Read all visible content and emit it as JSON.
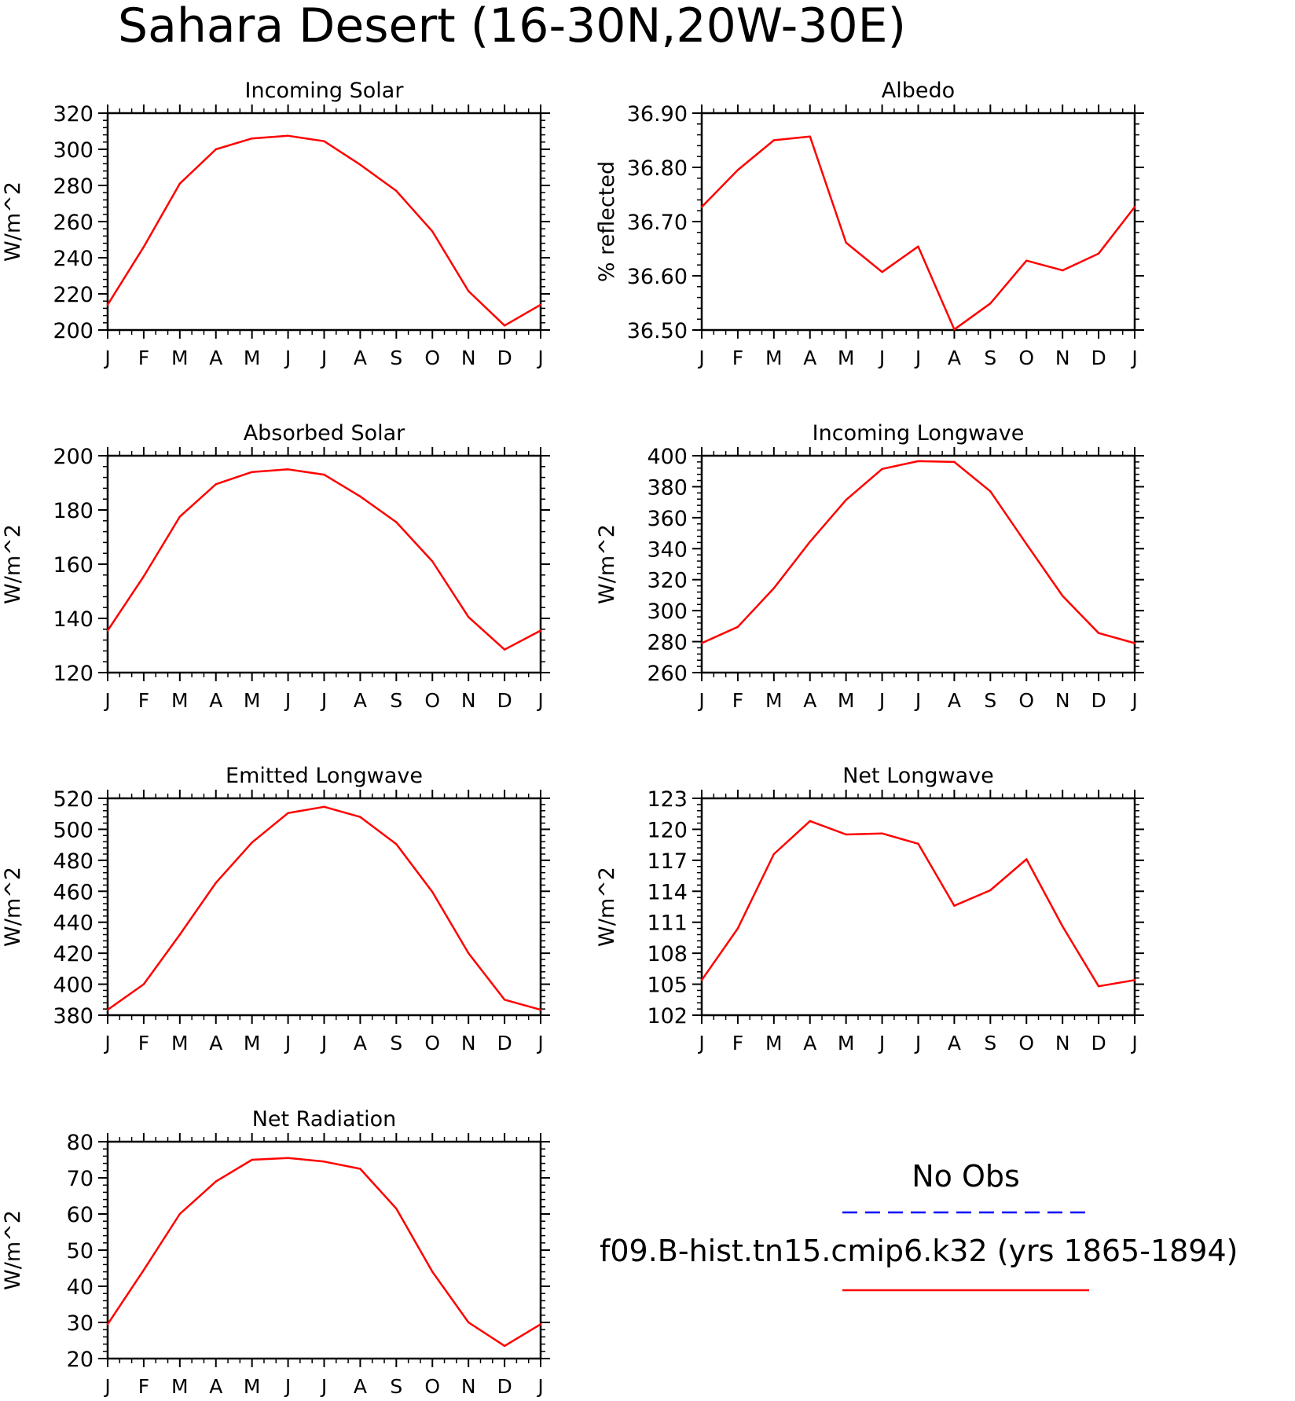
{
  "figure": {
    "title": "Sahara Desert (16-30N,20W-30E)"
  },
  "legend": {
    "items": [
      {
        "label": "No Obs",
        "color": "#0000ff",
        "dashed": true
      },
      {
        "label": "f09.B-hist.tn15.cmip6.k32 (yrs 1865-1894)",
        "color": "#ff0000",
        "dashed": false
      }
    ]
  },
  "chart_data": [
    {
      "type": "line",
      "title": "Incoming Solar",
      "ylabel": "W/m^2",
      "categories": [
        "J",
        "F",
        "M",
        "A",
        "M",
        "J",
        "J",
        "A",
        "S",
        "O",
        "N",
        "D",
        "J"
      ],
      "ylim": [
        200,
        320
      ],
      "yticks": [
        "200",
        "220",
        "240",
        "260",
        "280",
        "300",
        "320"
      ],
      "series": [
        {
          "color": "#ff0000",
          "values": [
            214,
            246,
            281,
            300,
            306,
            307.5,
            304.5,
            291.5,
            277,
            254.5,
            221.5,
            202.5,
            214
          ]
        }
      ]
    },
    {
      "type": "line",
      "title": "Albedo",
      "ylabel": "% reflected",
      "categories": [
        "J",
        "F",
        "M",
        "A",
        "M",
        "J",
        "J",
        "A",
        "S",
        "O",
        "N",
        "D",
        "J"
      ],
      "ylim": [
        36.5,
        36.9
      ],
      "yticks": [
        "36.50",
        "36.60",
        "36.70",
        "36.80",
        "36.90"
      ],
      "series": [
        {
          "color": "#ff0000",
          "values": [
            36.727,
            36.795,
            36.85,
            36.857,
            36.661,
            36.607,
            36.654,
            36.501,
            36.549,
            36.628,
            36.61,
            36.641,
            36.727
          ]
        }
      ]
    },
    {
      "type": "line",
      "title": "Absorbed Solar",
      "ylabel": "W/m^2",
      "categories": [
        "J",
        "F",
        "M",
        "A",
        "M",
        "J",
        "J",
        "A",
        "S",
        "O",
        "N",
        "D",
        "J"
      ],
      "ylim": [
        120,
        200
      ],
      "yticks": [
        "120",
        "140",
        "160",
        "180",
        "200"
      ],
      "series": [
        {
          "color": "#ff0000",
          "values": [
            135.5,
            155.5,
            177.5,
            189.5,
            194,
            195,
            193,
            185,
            175.5,
            161,
            140.5,
            128.5,
            135.5
          ]
        }
      ]
    },
    {
      "type": "line",
      "title": "Incoming Longwave",
      "ylabel": "W/m^2",
      "categories": [
        "J",
        "F",
        "M",
        "A",
        "M",
        "J",
        "J",
        "A",
        "S",
        "O",
        "N",
        "D",
        "J"
      ],
      "ylim": [
        260,
        400
      ],
      "yticks": [
        "260",
        "280",
        "300",
        "320",
        "340",
        "360",
        "380",
        "400"
      ],
      "series": [
        {
          "color": "#ff0000",
          "values": [
            279,
            289.5,
            314.5,
            344.5,
            371.5,
            391.5,
            396.5,
            396,
            377,
            343,
            309.5,
            285.5,
            279
          ]
        }
      ]
    },
    {
      "type": "line",
      "title": "Emitted Longwave",
      "ylabel": "W/m^2",
      "categories": [
        "J",
        "F",
        "M",
        "A",
        "M",
        "J",
        "J",
        "A",
        "S",
        "O",
        "N",
        "D",
        "J"
      ],
      "ylim": [
        380,
        520
      ],
      "yticks": [
        "380",
        "400",
        "420",
        "440",
        "460",
        "480",
        "500",
        "520"
      ],
      "series": [
        {
          "color": "#ff0000",
          "values": [
            383.5,
            400,
            432,
            465.5,
            491.5,
            510.5,
            514.5,
            508,
            490.5,
            459.5,
            420,
            390,
            383.5
          ]
        }
      ]
    },
    {
      "type": "line",
      "title": "Net Longwave",
      "ylabel": "W/m^2",
      "categories": [
        "J",
        "F",
        "M",
        "A",
        "M",
        "J",
        "J",
        "A",
        "S",
        "O",
        "N",
        "D",
        "J"
      ],
      "ylim": [
        102,
        123
      ],
      "yticks": [
        "102",
        "105",
        "108",
        "111",
        "114",
        "117",
        "120",
        "123"
      ],
      "series": [
        {
          "color": "#ff0000",
          "values": [
            105.4,
            110.4,
            117.6,
            120.8,
            119.5,
            119.6,
            118.6,
            112.6,
            114.1,
            117.1,
            110.6,
            104.8,
            105.4
          ]
        }
      ]
    },
    {
      "type": "line",
      "title": "Net Radiation",
      "ylabel": "W/m^2",
      "categories": [
        "J",
        "F",
        "M",
        "A",
        "M",
        "J",
        "J",
        "A",
        "S",
        "O",
        "N",
        "D",
        "J"
      ],
      "ylim": [
        20,
        80
      ],
      "yticks": [
        "20",
        "30",
        "40",
        "50",
        "60",
        "70",
        "80"
      ],
      "series": [
        {
          "color": "#ff0000",
          "values": [
            29.5,
            44.5,
            60,
            69,
            75,
            75.5,
            74.5,
            72.5,
            61.5,
            44,
            30,
            23.5,
            29.5
          ]
        }
      ]
    }
  ]
}
